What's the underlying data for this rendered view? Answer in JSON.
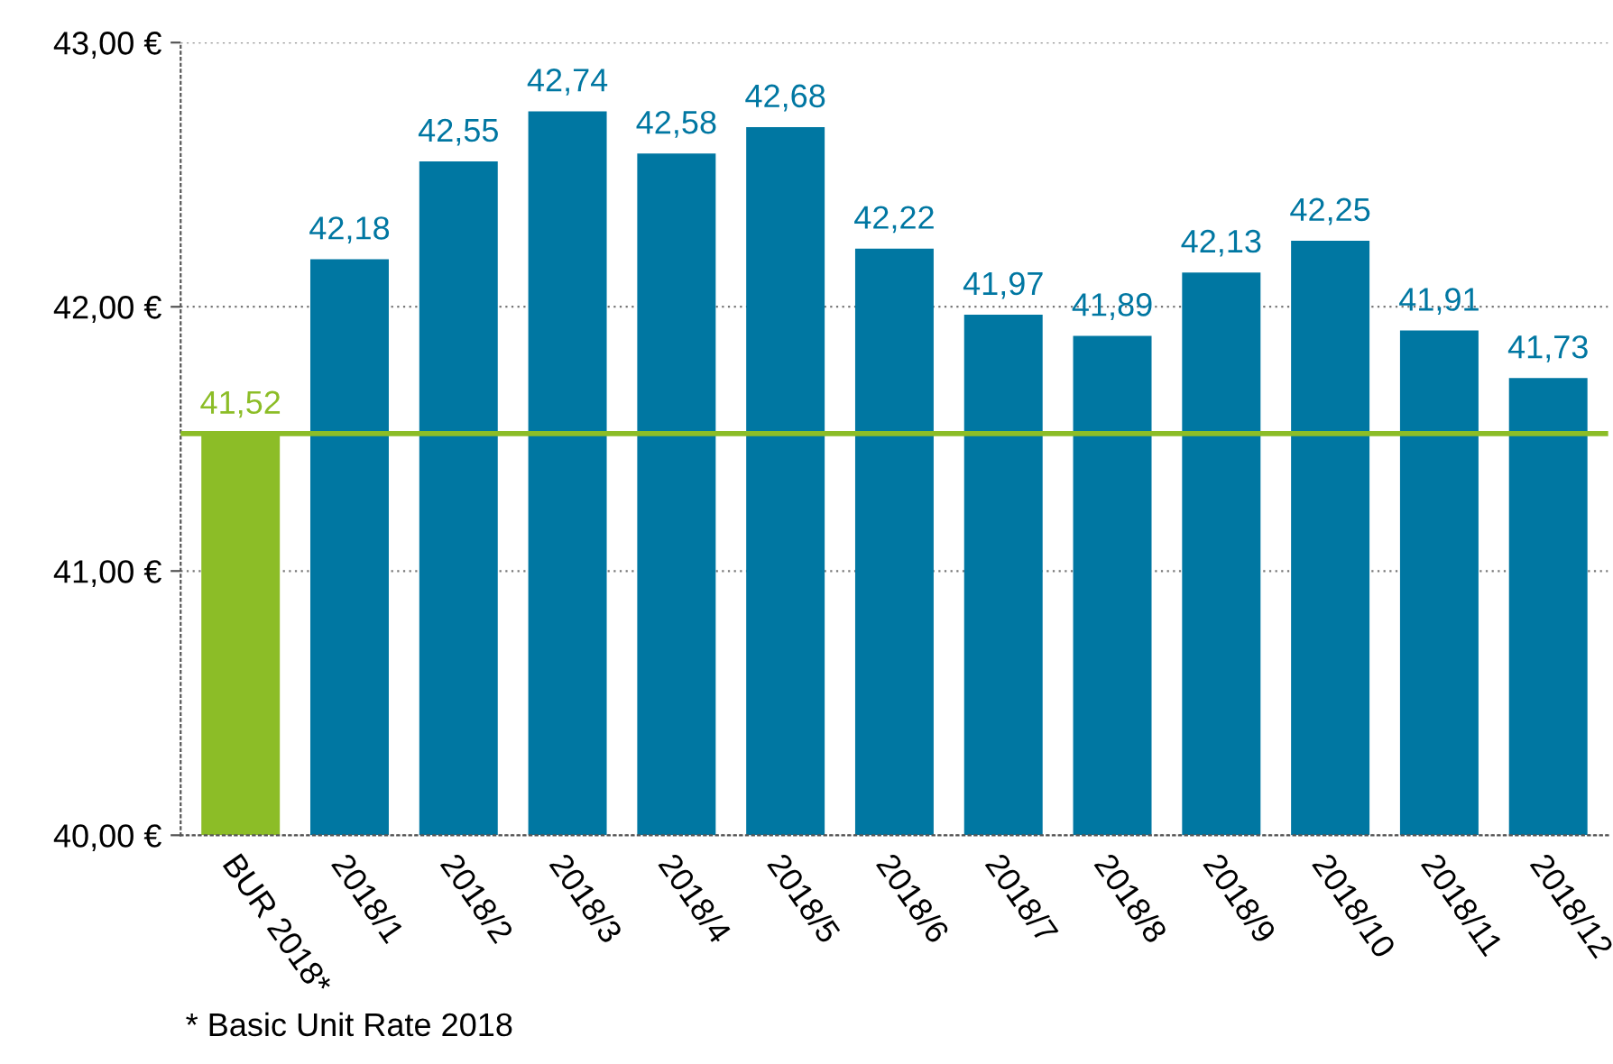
{
  "chart_data": {
    "type": "bar",
    "categories": [
      "BUR 2018*",
      "2018/1",
      "2018/2",
      "2018/3",
      "2018/4",
      "2018/5",
      "2018/6",
      "2018/7",
      "2018/8",
      "2018/9",
      "2018/10",
      "2018/11",
      "2018/12"
    ],
    "values": [
      41.52,
      42.18,
      42.55,
      42.74,
      42.58,
      42.68,
      42.22,
      41.97,
      41.89,
      42.13,
      42.25,
      41.91,
      41.73
    ],
    "colors": [
      "#8cbd27",
      "#0077a2",
      "#0077a2",
      "#0077a2",
      "#0077a2",
      "#0077a2",
      "#0077a2",
      "#0077a2",
      "#0077a2",
      "#0077a2",
      "#0077a2",
      "#0077a2",
      "#0077a2"
    ],
    "value_labels": [
      "41,52",
      "42,18",
      "42,55",
      "42,74",
      "42,58",
      "42,68",
      "42,22",
      "41,97",
      "41,89",
      "42,13",
      "42,25",
      "41,91",
      "41,73"
    ],
    "ylim": [
      40,
      43
    ],
    "yticks": [
      {
        "value": 40,
        "label": "40,00 €"
      },
      {
        "value": 41,
        "label": "41,00 €"
      },
      {
        "value": 42,
        "label": "42,00 €"
      },
      {
        "value": 43,
        "label": "43,00 €"
      }
    ],
    "ref_lines": [
      {
        "axis": "y",
        "value": 41.52,
        "color": "#8cbd27",
        "line_style": "solid"
      }
    ],
    "grid": "y",
    "legend": false,
    "annotations": [
      "* Basic Unit Rate 2018"
    ]
  }
}
